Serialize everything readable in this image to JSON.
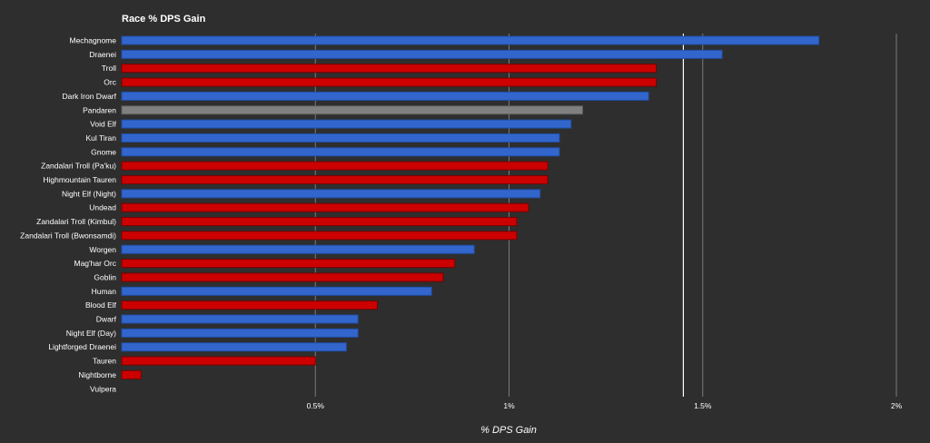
{
  "chart_data": {
    "type": "bar",
    "orientation": "horizontal",
    "title": "Race % DPS Gain",
    "xlabel": "% DPS Gain",
    "ylabel": "",
    "xlim": [
      0,
      2
    ],
    "xticks": [
      0.5,
      1,
      1.5,
      2
    ],
    "xtick_labels": [
      "0.5%",
      "1%",
      "1.5%",
      "2%"
    ],
    "grid": true,
    "legend": "none",
    "reference_line": 1.45,
    "categories": [
      "Mechagnome",
      "Draenei",
      "Troll",
      "Orc",
      "Dark Iron Dwarf",
      "Pandaren",
      "Void Elf",
      "Kul Tiran",
      "Gnome",
      "Zandalari Troll (Pa'ku)",
      "Highmountain Tauren",
      "Night Elf (Night)",
      "Undead",
      "Zandalari Troll (Kimbul)",
      "Zandalari Troll (Bwonsamdi)",
      "Worgen",
      "Mag'har Orc",
      "Goblin",
      "Human",
      "Blood Elf",
      "Dwarf",
      "Night Elf (Day)",
      "Lightforged Draenei",
      "Tauren",
      "Nightborne",
      "Vulpera"
    ],
    "values": [
      1.8,
      1.55,
      1.38,
      1.38,
      1.36,
      1.19,
      1.16,
      1.13,
      1.13,
      1.1,
      1.1,
      1.08,
      1.05,
      1.02,
      1.02,
      0.91,
      0.86,
      0.83,
      0.8,
      0.66,
      0.61,
      0.61,
      0.58,
      0.5,
      0.05,
      0.0
    ],
    "bar_colors": [
      "#3366cc",
      "#3366cc",
      "#cc0000",
      "#cc0000",
      "#3366cc",
      "#808080",
      "#3366cc",
      "#3366cc",
      "#3366cc",
      "#cc0000",
      "#cc0000",
      "#3366cc",
      "#cc0000",
      "#cc0000",
      "#cc0000",
      "#3366cc",
      "#cc0000",
      "#cc0000",
      "#3366cc",
      "#cc0000",
      "#3366cc",
      "#3366cc",
      "#3366cc",
      "#cc0000",
      "#cc0000",
      "#cc0000"
    ],
    "colors": {
      "background": "#2e2e2e",
      "gridline": "#7a7a7a",
      "reference_line": "#ffffff",
      "bar_stroke_blue": "#1f4fa8",
      "bar_stroke_red": "#7a0000",
      "bar_stroke_gray": "#5a5a5a"
    }
  }
}
